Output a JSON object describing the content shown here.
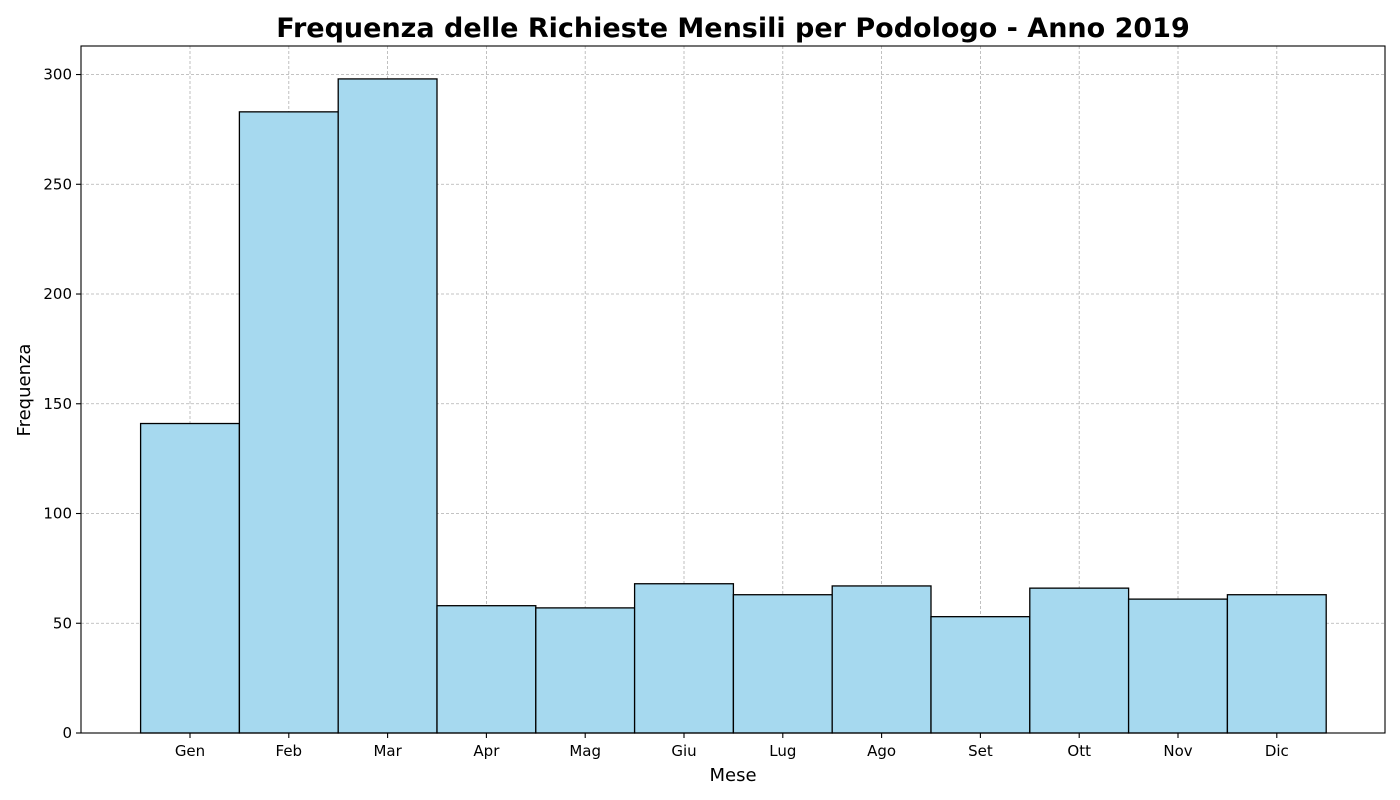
{
  "chart_data": {
    "type": "bar",
    "title": "Frequenza delle Richieste Mensili per Podologo - Anno 2019",
    "xlabel": "Mese",
    "ylabel": "Frequenza",
    "categories": [
      "Gen",
      "Feb",
      "Mar",
      "Apr",
      "Mag",
      "Giu",
      "Lug",
      "Ago",
      "Set",
      "Ott",
      "Nov",
      "Dic"
    ],
    "values": [
      141,
      283,
      298,
      58,
      57,
      68,
      63,
      67,
      53,
      66,
      61,
      63
    ],
    "ylim": [
      0,
      313
    ],
    "yticks": [
      0,
      50,
      100,
      150,
      200,
      250,
      300
    ],
    "grid": true,
    "bar_color": "#a6d9ef",
    "edge_color": "#000000"
  }
}
